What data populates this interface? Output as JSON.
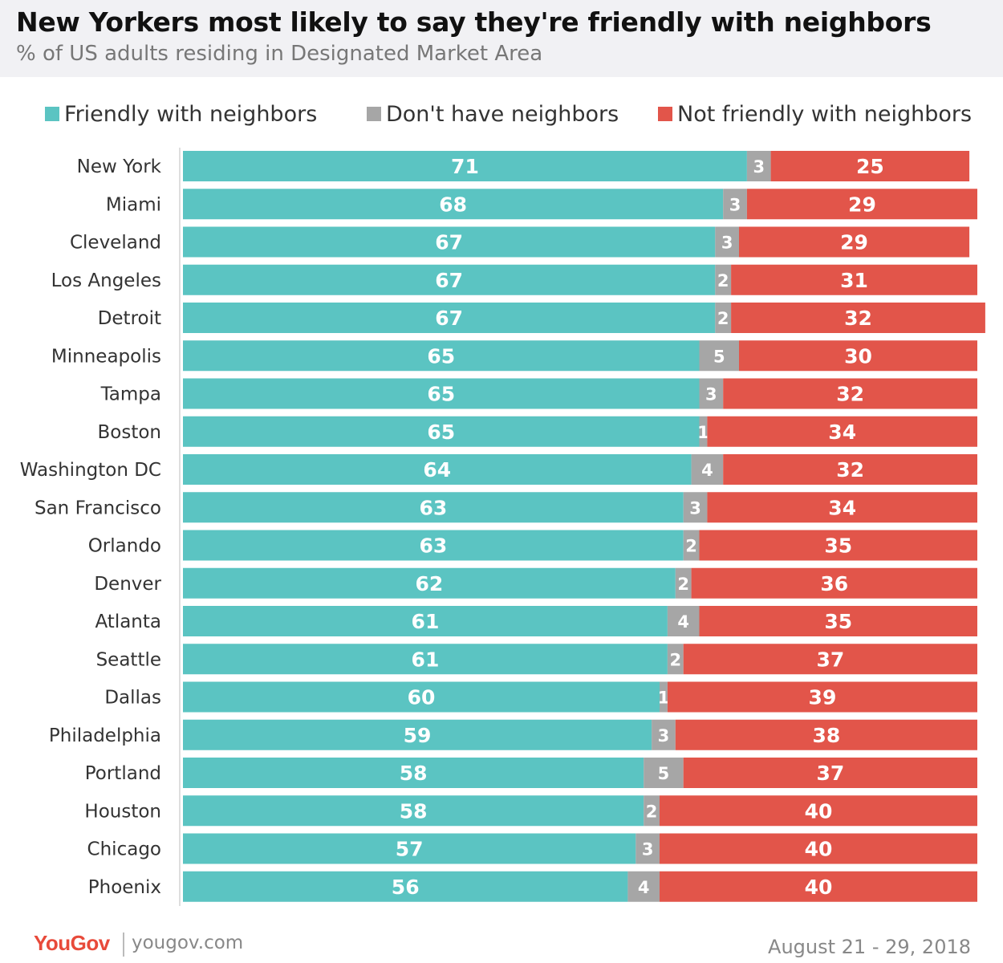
{
  "header": {
    "title": "New Yorkers most likely to say they're friendly with neighbors",
    "subtitle": "% of US adults residing in Designated Market Area"
  },
  "legend": [
    {
      "label": "Friendly with neighbors",
      "color": "#5bc4c2"
    },
    {
      "label": "Don't have neighbors",
      "color": "#a6a6a6"
    },
    {
      "label": "Not friendly with neighbors",
      "color": "#e2554a"
    }
  ],
  "chart_data": {
    "type": "bar",
    "orientation": "horizontal",
    "stacked": true,
    "title": "New Yorkers most likely to say they're friendly with neighbors",
    "subtitle": "% of US adults residing in Designated Market Area",
    "xlabel": "",
    "ylabel": "",
    "xlim": [
      0,
      100
    ],
    "grid": false,
    "legend_position": "top",
    "categories": [
      "New York",
      "Miami",
      "Cleveland",
      "Los Angeles",
      "Detroit",
      "Minneapolis",
      "Tampa",
      "Boston",
      "Washington DC",
      "San Francisco",
      "Orlando",
      "Denver",
      "Atlanta",
      "Seattle",
      "Dallas",
      "Philadelphia",
      "Portland",
      "Houston",
      "Chicago",
      "Phoenix"
    ],
    "series": [
      {
        "name": "Friendly with neighbors",
        "color": "#5bc4c2",
        "values": [
          71,
          68,
          67,
          67,
          67,
          65,
          65,
          65,
          64,
          63,
          63,
          62,
          61,
          61,
          60,
          59,
          58,
          58,
          57,
          56
        ]
      },
      {
        "name": "Don't have neighbors",
        "color": "#a6a6a6",
        "values": [
          3,
          3,
          3,
          2,
          2,
          5,
          3,
          1,
          4,
          3,
          2,
          2,
          4,
          2,
          1,
          3,
          5,
          2,
          3,
          4
        ]
      },
      {
        "name": "Not friendly with neighbors",
        "color": "#e2554a",
        "values": [
          25,
          29,
          29,
          31,
          32,
          30,
          32,
          34,
          32,
          34,
          35,
          36,
          35,
          37,
          39,
          38,
          37,
          40,
          40,
          40
        ]
      }
    ]
  },
  "footer": {
    "logo": "YouGov",
    "url": "yougov.com",
    "date": "August 21 - 29, 2018"
  }
}
